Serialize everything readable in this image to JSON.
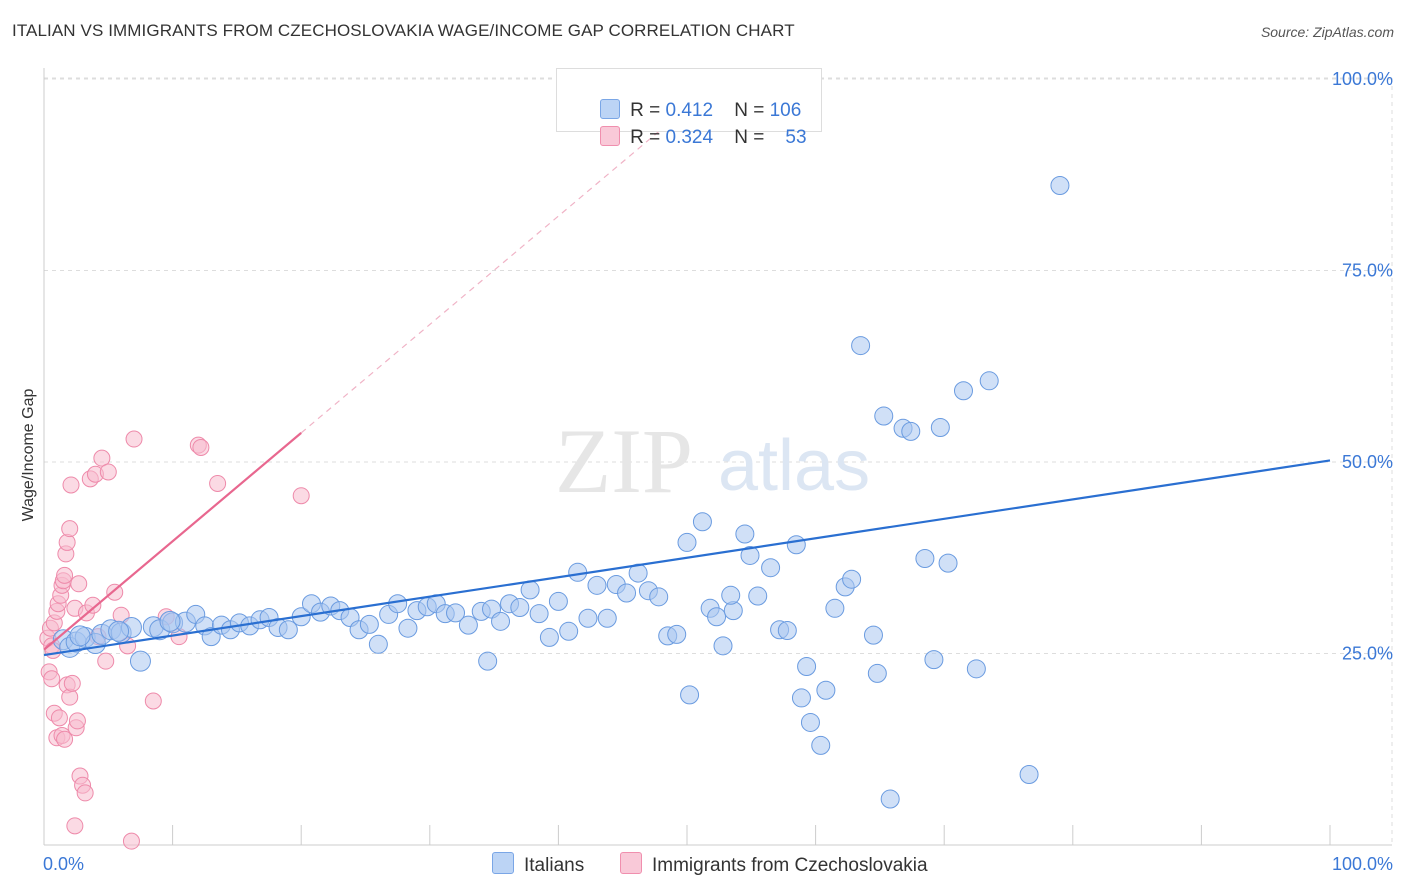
{
  "title": "ITALIAN VS IMMIGRANTS FROM CZECHOSLOVAKIA WAGE/INCOME GAP CORRELATION CHART",
  "source": "Source: ZipAtlas.com",
  "watermark": {
    "zip": "ZIP",
    "atlas": "atlas"
  },
  "legend": {
    "rows": [
      {
        "r_label": "R =",
        "r_value": "0.412",
        "n_label": "N =",
        "n_value": "106"
      },
      {
        "r_label": "R =",
        "r_value": "0.324",
        "n_label": "N =",
        "n_value": "53"
      }
    ]
  },
  "bottom_legend": {
    "italians": "Italians",
    "czech": "Immigrants from Czechoslovakia"
  },
  "colors": {
    "blue_fill": "#a9c7f0",
    "blue_stroke": "#6a9be0",
    "blue_line": "#2a6fd1",
    "pink_fill": "#f7bccd",
    "pink_stroke": "#ee8aaa",
    "pink_line": "#e8678f",
    "axis_text": "#3b78d6",
    "grid": "#dddddd"
  },
  "chart_data": {
    "type": "scatter",
    "title": "ITALIAN VS IMMIGRANTS FROM CZECHOSLOVAKIA WAGE/INCOME GAP CORRELATION CHART",
    "xlabel": "",
    "ylabel": "Wage/Income Gap",
    "xlim": [
      0,
      100
    ],
    "ylim": [
      0,
      105
    ],
    "x_tick_labels": [
      "0.0%",
      "100.0%"
    ],
    "y_ticks": [
      25,
      50,
      75,
      100
    ],
    "y_tick_labels": [
      "25.0%",
      "50.0%",
      "75.0%",
      "100.0%"
    ],
    "grid": true,
    "series": [
      {
        "name": "Italians",
        "color": "blue",
        "r": 0.412,
        "n": 106,
        "trend": {
          "x": [
            0,
            100
          ],
          "y": [
            24.8,
            50.2
          ]
        },
        "points": [
          [
            1.5,
            26.8
          ],
          [
            2,
            25.8
          ],
          [
            2.5,
            26.5
          ],
          [
            3.2,
            27.1
          ],
          [
            4,
            26.3
          ],
          [
            4.5,
            27.5
          ],
          [
            5.2,
            28.1
          ],
          [
            6,
            27.7
          ],
          [
            6.8,
            28.4
          ],
          [
            7.5,
            24.0
          ],
          [
            8.5,
            28.5
          ],
          [
            9,
            28.1
          ],
          [
            10,
            29.0
          ],
          [
            11,
            29.1
          ],
          [
            11.8,
            30.1
          ],
          [
            12.5,
            28.6
          ],
          [
            13,
            27.2
          ],
          [
            13.8,
            28.7
          ],
          [
            14.5,
            28.1
          ],
          [
            15.2,
            29.0
          ],
          [
            16,
            28.6
          ],
          [
            16.8,
            29.4
          ],
          [
            17.5,
            29.7
          ],
          [
            18.2,
            28.4
          ],
          [
            19,
            28.1
          ],
          [
            20,
            29.8
          ],
          [
            20.8,
            31.5
          ],
          [
            21.5,
            30.4
          ],
          [
            22.3,
            31.2
          ],
          [
            23,
            30.6
          ],
          [
            23.8,
            29.7
          ],
          [
            24.5,
            28.1
          ],
          [
            25.3,
            28.8
          ],
          [
            26,
            26.2
          ],
          [
            26.8,
            30.1
          ],
          [
            27.5,
            31.5
          ],
          [
            28.3,
            28.3
          ],
          [
            29,
            30.6
          ],
          [
            29.8,
            31.1
          ],
          [
            30.5,
            31.5
          ],
          [
            31.2,
            30.2
          ],
          [
            32,
            30.3
          ],
          [
            33,
            28.7
          ],
          [
            34,
            30.5
          ],
          [
            34.8,
            30.8
          ],
          [
            35.5,
            29.2
          ],
          [
            36.2,
            31.5
          ],
          [
            37,
            31.0
          ],
          [
            37.8,
            33.3
          ],
          [
            38.5,
            30.2
          ],
          [
            39.3,
            27.1
          ],
          [
            40,
            31.8
          ],
          [
            40.8,
            27.9
          ],
          [
            41.5,
            35.6
          ],
          [
            42.3,
            29.6
          ],
          [
            43,
            33.9
          ],
          [
            43.8,
            29.6
          ],
          [
            44.5,
            34.0
          ],
          [
            45.3,
            32.9
          ],
          [
            46.2,
            35.5
          ],
          [
            47,
            33.2
          ],
          [
            47.8,
            32.4
          ],
          [
            48.5,
            27.3
          ],
          [
            49.2,
            27.5
          ],
          [
            50,
            39.5
          ],
          [
            51.2,
            42.2
          ],
          [
            51.8,
            30.9
          ],
          [
            52.3,
            29.8
          ],
          [
            52.8,
            26.0
          ],
          [
            53.6,
            30.6
          ],
          [
            54.5,
            40.6
          ],
          [
            54.9,
            37.8
          ],
          [
            55.5,
            32.5
          ],
          [
            56.5,
            36.2
          ],
          [
            57.2,
            28.1
          ],
          [
            57.8,
            28.0
          ],
          [
            58.5,
            39.2
          ],
          [
            59.3,
            23.3
          ],
          [
            50.2,
            19.6
          ],
          [
            53.4,
            32.6
          ],
          [
            58.9,
            19.2
          ],
          [
            59.6,
            16.0
          ],
          [
            60.4,
            13.0
          ],
          [
            60.8,
            20.2
          ],
          [
            61.5,
            30.9
          ],
          [
            62.3,
            33.7
          ],
          [
            62.8,
            34.7
          ],
          [
            63.5,
            65.2
          ],
          [
            64.8,
            22.4
          ],
          [
            64.5,
            27.4
          ],
          [
            65.3,
            56.0
          ],
          [
            66.8,
            54.4
          ],
          [
            67.4,
            54.0
          ],
          [
            68.5,
            37.4
          ],
          [
            69.2,
            24.2
          ],
          [
            69.7,
            54.5
          ],
          [
            70.3,
            36.8
          ],
          [
            71.5,
            59.3
          ],
          [
            72.5,
            23.0
          ],
          [
            73.5,
            60.6
          ],
          [
            76.6,
            9.2
          ],
          [
            79,
            86.1
          ],
          [
            65.8,
            6.0
          ],
          [
            34.5,
            24.0
          ],
          [
            2.8,
            27.3
          ],
          [
            5.8,
            27.9
          ],
          [
            9.8,
            29.2
          ]
        ]
      },
      {
        "name": "Immigrants from Czechoslovakia",
        "color": "pink",
        "r": 0.324,
        "n": 53,
        "trend": {
          "x": [
            0,
            20
          ],
          "y": [
            25.5,
            53.8
          ]
        },
        "trend_dashed": {
          "x": [
            20,
            53
          ],
          "y": [
            53.8,
            100.5
          ]
        },
        "points": [
          [
            0.3,
            27.0
          ],
          [
            0.5,
            28.3
          ],
          [
            0.6,
            26.0
          ],
          [
            0.7,
            25.4
          ],
          [
            0.8,
            29.0
          ],
          [
            1,
            30.5
          ],
          [
            1.1,
            31.5
          ],
          [
            1.3,
            32.6
          ],
          [
            1.4,
            33.9
          ],
          [
            1.5,
            34.5
          ],
          [
            1.6,
            35.2
          ],
          [
            1.7,
            38.0
          ],
          [
            1.8,
            39.5
          ],
          [
            2,
            41.3
          ],
          [
            2.1,
            47.0
          ],
          [
            0.4,
            22.6
          ],
          [
            0.6,
            21.7
          ],
          [
            0.8,
            17.2
          ],
          [
            1,
            14.0
          ],
          [
            1.2,
            16.6
          ],
          [
            1.4,
            14.3
          ],
          [
            1.6,
            13.8
          ],
          [
            1.8,
            20.9
          ],
          [
            2,
            19.3
          ],
          [
            2.2,
            21.1
          ],
          [
            2.5,
            15.3
          ],
          [
            2.6,
            16.2
          ],
          [
            2.8,
            9.0
          ],
          [
            3,
            7.8
          ],
          [
            3.2,
            6.8
          ],
          [
            3.6,
            47.8
          ],
          [
            4,
            48.4
          ],
          [
            4.5,
            50.5
          ],
          [
            5,
            48.7
          ],
          [
            5.5,
            33.0
          ],
          [
            6,
            30.0
          ],
          [
            6.5,
            26.0
          ],
          [
            2.4,
            30.9
          ],
          [
            2.7,
            34.1
          ],
          [
            3.3,
            30.3
          ],
          [
            4.2,
            27.2
          ],
          [
            4.8,
            24.0
          ],
          [
            3.8,
            31.3
          ],
          [
            7,
            53.0
          ],
          [
            8.5,
            18.8
          ],
          [
            9.5,
            29.8
          ],
          [
            10.5,
            27.2
          ],
          [
            12,
            52.2
          ],
          [
            12.2,
            51.9
          ],
          [
            13.5,
            47.2
          ],
          [
            20,
            45.6
          ],
          [
            2.4,
            2.5
          ],
          [
            6.8,
            0.5
          ]
        ]
      }
    ]
  }
}
